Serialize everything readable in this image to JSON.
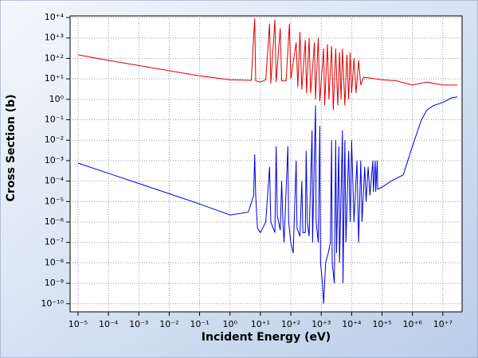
{
  "chart_data": {
    "type": "line",
    "x_label": "Incident Energy (eV)",
    "y_label": "Cross Section (b)",
    "xscale": "log",
    "yscale": "log",
    "grid": true,
    "xlim": [
      5.5e-06,
      43000000.0
    ],
    "ylim": [
      4e-11,
      12000.0
    ],
    "xticks": [
      {
        "value": 1e-05,
        "label": "10⁻⁵"
      },
      {
        "value": 0.0001,
        "label": "10⁻⁴"
      },
      {
        "value": 0.001,
        "label": "10⁻³"
      },
      {
        "value": 0.01,
        "label": "10⁻²"
      },
      {
        "value": 0.1,
        "label": "10⁻¹"
      },
      {
        "value": 1,
        "label": "10⁰"
      },
      {
        "value": 10,
        "label": "10⁺¹"
      },
      {
        "value": 100,
        "label": "10⁺²"
      },
      {
        "value": 1000,
        "label": "10⁺³"
      },
      {
        "value": 10000,
        "label": "10⁺⁴"
      },
      {
        "value": 100000,
        "label": "10⁺⁵"
      },
      {
        "value": 1000000,
        "label": "10⁺⁶"
      },
      {
        "value": 10000000,
        "label": "10⁺⁷"
      }
    ],
    "yticks": [
      {
        "value": 1e-10,
        "label": "10⁻¹⁰"
      },
      {
        "value": 1e-09,
        "label": "10⁻⁹"
      },
      {
        "value": 1e-08,
        "label": "10⁻⁸"
      },
      {
        "value": 1e-07,
        "label": "10⁻⁷"
      },
      {
        "value": 1e-06,
        "label": "10⁻⁶"
      },
      {
        "value": 1e-05,
        "label": "10⁻⁵"
      },
      {
        "value": 0.0001,
        "label": "10⁻⁴"
      },
      {
        "value": 0.001,
        "label": "10⁻³"
      },
      {
        "value": 0.01,
        "label": "10⁻²"
      },
      {
        "value": 0.1,
        "label": "10⁻¹"
      },
      {
        "value": 1,
        "label": "10⁰"
      },
      {
        "value": 10,
        "label": "10⁺¹"
      },
      {
        "value": 100,
        "label": "10⁺²"
      },
      {
        "value": 1000,
        "label": "10⁺³"
      },
      {
        "value": 10000,
        "label": "10⁺⁴"
      }
    ],
    "series": [
      {
        "color": "#e00000",
        "x": [
          1e-05,
          0.0001,
          0.001,
          0.01,
          0.1,
          1,
          5,
          6.5,
          7,
          10,
          15,
          20,
          22,
          30,
          33,
          45,
          50,
          70,
          90,
          100,
          150,
          170,
          200,
          230,
          300,
          330,
          400,
          450,
          600,
          650,
          800,
          900,
          1200,
          1300,
          1600,
          1800,
          2200,
          2500,
          3000,
          3500,
          4000,
          4500,
          5000,
          6000,
          7000,
          8000,
          9000,
          10000,
          12000,
          14000,
          17000,
          20000,
          25000,
          100000,
          300000,
          1000000,
          3000000,
          10000000,
          30000000
        ],
        "values": [
          150,
          80,
          45,
          25,
          14,
          9,
          8.5,
          9000,
          8,
          7,
          9,
          5000,
          6,
          8000,
          7,
          3000,
          8,
          8,
          5000,
          10,
          600,
          4,
          2000,
          3,
          800,
          2,
          1000,
          2,
          600,
          1,
          1000,
          0.8,
          300,
          0.5,
          500,
          1,
          400,
          0.3,
          300,
          0.5,
          200,
          1,
          300,
          0.5,
          150,
          1,
          200,
          2,
          100,
          2,
          80,
          5,
          12,
          9,
          8,
          5,
          7,
          5,
          5
        ]
      },
      {
        "color": "#0000e0",
        "x": [
          1e-05,
          0.0001,
          0.001,
          0.01,
          0.1,
          1,
          4,
          6,
          6.5,
          7,
          8,
          10,
          15,
          20,
          22,
          30,
          33,
          36,
          45,
          50,
          55,
          60,
          80,
          85,
          100,
          120,
          150,
          160,
          200,
          230,
          250,
          300,
          320,
          350,
          400,
          500,
          520,
          650,
          680,
          800,
          900,
          950,
          1100,
          1200,
          1400,
          1700,
          2000,
          2200,
          2300,
          2700,
          3000,
          3200,
          3800,
          4000,
          5000,
          5200,
          6000,
          6500,
          8000,
          9000,
          10000,
          12000,
          15000,
          17000,
          20000,
          22000,
          27000,
          30000,
          35000,
          40000,
          50000,
          52000,
          60000,
          62000,
          70000,
          72000,
          100000,
          200000,
          500000,
          1000000,
          1500000,
          2000000,
          3000000,
          5000000,
          10000000,
          20000000,
          30000000
        ],
        "values": [
          0.00076,
          0.00024,
          7.6e-05,
          2.4e-05,
          7.6e-06,
          2.2e-06,
          3e-06,
          2e-05,
          0.002,
          2e-05,
          5e-07,
          3e-07,
          1e-06,
          0.0005,
          1e-06,
          3e-07,
          0.005,
          2e-06,
          4e-07,
          0.0001,
          1e-06,
          1e-07,
          0.005,
          1e-06,
          1e-07,
          3e-08,
          0.001,
          5e-07,
          2e-07,
          0.0001,
          3e-07,
          3e-07,
          0.003,
          1e-06,
          2e-07,
          0.03,
          1e-07,
          0.5,
          1e-06,
          1e-07,
          0.05,
          1e-08,
          1e-09,
          1e-10,
          1e-08,
          3e-08,
          1e-07,
          0.01,
          1e-08,
          1e-09,
          0.01,
          3e-08,
          0.005,
          1e-08,
          0.03,
          1e-09,
          0.01,
          1e-07,
          0.003,
          1e-06,
          0.01,
          1e-06,
          0.001,
          1e-07,
          0.001,
          1e-06,
          0.0005,
          1e-05,
          0.0005,
          2e-05,
          0.001,
          3e-05,
          0.001,
          3e-05,
          0.001,
          4e-05,
          5e-05,
          0.0001,
          0.0002,
          0.005,
          0.03,
          0.1,
          0.3,
          0.5,
          0.7,
          1.2,
          1.3
        ]
      }
    ]
  }
}
